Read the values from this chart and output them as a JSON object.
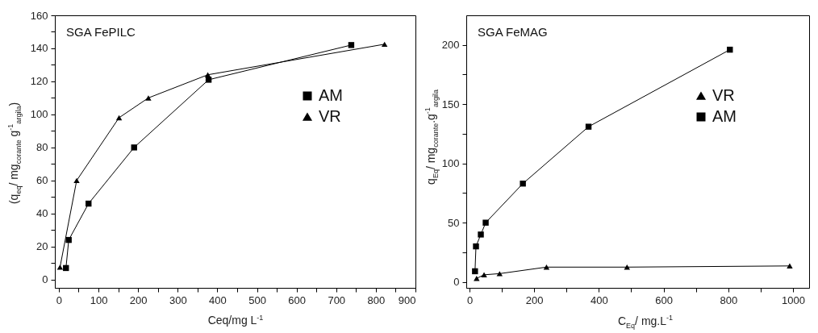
{
  "chart_data": [
    {
      "type": "line",
      "annotations": [
        "SGA FePILC"
      ],
      "xlabel": "Ceq/mg L$^{-1}$",
      "ylabel": "(q$_{eq}$/ mg$_{corante}$ g$^{-1}$$_{argila}$)",
      "xlim": [
        -10,
        900
      ],
      "ylim": [
        -5,
        160
      ],
      "xticks": [
        0,
        {
          "value": 50,
          "label": null
        },
        100,
        {
          "value": 150,
          "label": null
        },
        200,
        {
          "value": 250,
          "label": null
        },
        300,
        {
          "value": 350,
          "label": null
        },
        400,
        {
          "value": 450,
          "label": null
        },
        500,
        {
          "value": 550,
          "label": null
        },
        600,
        {
          "value": 650,
          "label": null
        },
        700,
        {
          "value": 750,
          "label": null
        },
        800,
        {
          "value": 850,
          "label": null
        },
        900
      ],
      "yticks": [
        0,
        {
          "value": 10,
          "label": null
        },
        20,
        {
          "value": 30,
          "label": null
        },
        40,
        {
          "value": 50,
          "label": null
        },
        60,
        {
          "value": 70,
          "label": null
        },
        80,
        {
          "value": 90,
          "label": null
        },
        100,
        {
          "value": 110,
          "label": null
        },
        120,
        {
          "value": 130,
          "label": null
        },
        140,
        {
          "value": 150,
          "label": null
        },
        160
      ],
      "legend": "top right",
      "line_style": "solid",
      "series": [
        {
          "name": "AM",
          "color": "#000000",
          "marker": "square",
          "x": [
            18,
            25,
            75,
            190,
            378,
            738
          ],
          "values": [
            7,
            24,
            46,
            80,
            121,
            142
          ]
        },
        {
          "name": "VR",
          "color": "#000000",
          "marker": "triangle",
          "x": [
            3,
            45,
            152,
            226,
            376,
            822
          ],
          "values": [
            7.5,
            60,
            98,
            110,
            124,
            142.5
          ]
        }
      ]
    },
    {
      "type": "line",
      "annotations": [
        "SGA FeMAG"
      ],
      "xlabel": "C$_{Eq}$/ mg.L$^{-1}$",
      "ylabel": "q$_{Eq}$/ mg$_{corante}$.g$^{-1}$$_{argila}$",
      "xlim": [
        -10,
        1050
      ],
      "ylim": [
        -5,
        225
      ],
      "xticks": [
        0,
        {
          "value": 100,
          "label": null
        },
        200,
        {
          "value": 300,
          "label": null
        },
        400,
        {
          "value": 500,
          "label": null
        },
        600,
        {
          "value": 700,
          "label": null
        },
        800,
        {
          "value": 900,
          "label": null
        },
        1000
      ],
      "yticks": [
        0,
        {
          "value": 25,
          "label": null
        },
        50,
        {
          "value": 75,
          "label": null
        },
        100,
        {
          "value": 125,
          "label": null
        },
        150,
        {
          "value": 175,
          "label": null
        },
        200
      ],
      "legend": "top right",
      "line_style": "solid",
      "series": [
        {
          "name": "VR",
          "color": "#000000",
          "marker": "triangle",
          "x": [
            22,
            45,
            93,
            238,
            487,
            990
          ],
          "values": [
            3,
            6,
            7,
            12.5,
            12.5,
            13.5
          ]
        },
        {
          "name": "AM",
          "color": "#000000",
          "marker": "square",
          "x": [
            17,
            20,
            35,
            50,
            165,
            368,
            805
          ],
          "values": [
            9,
            30,
            40,
            50,
            83,
            131,
            196
          ]
        }
      ]
    }
  ]
}
